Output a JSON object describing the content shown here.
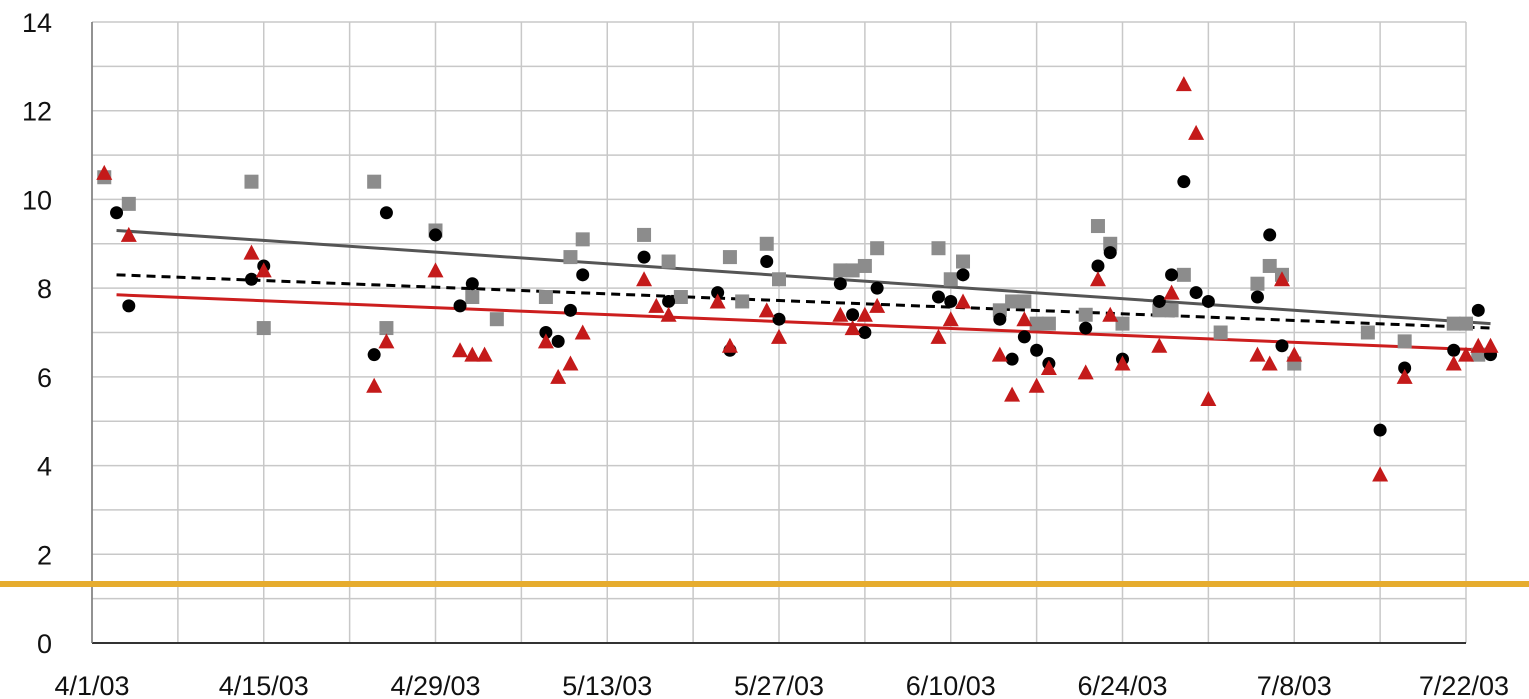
{
  "chart_data": {
    "type": "scatter",
    "title": "",
    "xlabel": "",
    "ylabel": "",
    "x_ticks": [
      "4/1/03",
      "4/15/03",
      "4/29/03",
      "5/13/03",
      "5/27/03",
      "6/10/03",
      "6/24/03",
      "7/8/03",
      "7/22/03"
    ],
    "y_ticks": [
      "0",
      "2",
      "4",
      "6",
      "8",
      "10",
      "12",
      "14"
    ],
    "xlim": [
      "2003-04-01",
      "2003-07-22"
    ],
    "ylim": [
      0,
      14
    ],
    "grid": true,
    "legend": "none",
    "series": [
      {
        "marker": "square",
        "color": "#8c8c8c",
        "points": [
          [
            "2003-04-02",
            10.5
          ],
          [
            "2003-04-04",
            9.9
          ],
          [
            "2003-04-14",
            10.4
          ],
          [
            "2003-04-15",
            7.1
          ],
          [
            "2003-04-24",
            10.4
          ],
          [
            "2003-04-25",
            7.1
          ],
          [
            "2003-04-29",
            9.3
          ],
          [
            "2003-05-02",
            7.8
          ],
          [
            "2003-05-04",
            7.3
          ],
          [
            "2003-05-08",
            7.8
          ],
          [
            "2003-05-10",
            8.7
          ],
          [
            "2003-05-11",
            9.1
          ],
          [
            "2003-05-16",
            9.2
          ],
          [
            "2003-05-18",
            8.6
          ],
          [
            "2003-05-19",
            7.8
          ],
          [
            "2003-05-23",
            8.7
          ],
          [
            "2003-05-24",
            7.7
          ],
          [
            "2003-05-26",
            9.0
          ],
          [
            "2003-05-27",
            8.2
          ],
          [
            "2003-06-01",
            8.4
          ],
          [
            "2003-06-02",
            8.4
          ],
          [
            "2003-06-03",
            8.5
          ],
          [
            "2003-06-04",
            8.9
          ],
          [
            "2003-06-09",
            8.9
          ],
          [
            "2003-06-10",
            8.2
          ],
          [
            "2003-06-11",
            8.6
          ],
          [
            "2003-06-14",
            7.5
          ],
          [
            "2003-06-15",
            7.7
          ],
          [
            "2003-06-16",
            7.7
          ],
          [
            "2003-06-17",
            7.2
          ],
          [
            "2003-06-18",
            7.2
          ],
          [
            "2003-06-21",
            7.4
          ],
          [
            "2003-06-22",
            9.4
          ],
          [
            "2003-06-23",
            9.0
          ],
          [
            "2003-06-24",
            7.2
          ],
          [
            "2003-06-27",
            7.5
          ],
          [
            "2003-06-28",
            7.5
          ],
          [
            "2003-06-29",
            8.3
          ],
          [
            "2003-07-02",
            7.0
          ],
          [
            "2003-07-05",
            8.1
          ],
          [
            "2003-07-06",
            8.5
          ],
          [
            "2003-07-07",
            8.3
          ],
          [
            "2003-07-08",
            6.3
          ],
          [
            "2003-07-14",
            7.0
          ],
          [
            "2003-07-17",
            6.8
          ],
          [
            "2003-07-21",
            7.2
          ],
          [
            "2003-07-22",
            7.2
          ],
          [
            "2003-07-23",
            6.5
          ]
        ]
      },
      {
        "marker": "circle",
        "color": "#000000",
        "points": [
          [
            "2003-04-03",
            9.7
          ],
          [
            "2003-04-04",
            7.6
          ],
          [
            "2003-04-14",
            8.2
          ],
          [
            "2003-04-15",
            8.5
          ],
          [
            "2003-04-24",
            6.5
          ],
          [
            "2003-04-25",
            9.7
          ],
          [
            "2003-04-29",
            9.2
          ],
          [
            "2003-05-01",
            7.6
          ],
          [
            "2003-05-02",
            8.1
          ],
          [
            "2003-05-08",
            7.0
          ],
          [
            "2003-05-09",
            6.8
          ],
          [
            "2003-05-10",
            7.5
          ],
          [
            "2003-05-11",
            8.3
          ],
          [
            "2003-05-16",
            8.7
          ],
          [
            "2003-05-18",
            7.7
          ],
          [
            "2003-05-22",
            7.9
          ],
          [
            "2003-05-23",
            6.6
          ],
          [
            "2003-05-26",
            8.6
          ],
          [
            "2003-05-27",
            7.3
          ],
          [
            "2003-06-01",
            8.1
          ],
          [
            "2003-06-02",
            7.4
          ],
          [
            "2003-06-03",
            7.0
          ],
          [
            "2003-06-04",
            8.0
          ],
          [
            "2003-06-09",
            7.8
          ],
          [
            "2003-06-10",
            7.7
          ],
          [
            "2003-06-11",
            8.3
          ],
          [
            "2003-06-14",
            7.3
          ],
          [
            "2003-06-15",
            6.4
          ],
          [
            "2003-06-16",
            6.9
          ],
          [
            "2003-06-17",
            6.6
          ],
          [
            "2003-06-18",
            6.3
          ],
          [
            "2003-06-21",
            7.1
          ],
          [
            "2003-06-22",
            8.5
          ],
          [
            "2003-06-23",
            8.8
          ],
          [
            "2003-06-24",
            6.4
          ],
          [
            "2003-06-27",
            7.7
          ],
          [
            "2003-06-28",
            8.3
          ],
          [
            "2003-06-29",
            10.4
          ],
          [
            "2003-06-30",
            7.9
          ],
          [
            "2003-07-01",
            7.7
          ],
          [
            "2003-07-05",
            7.8
          ],
          [
            "2003-07-06",
            9.2
          ],
          [
            "2003-07-07",
            6.7
          ],
          [
            "2003-07-15",
            4.8
          ],
          [
            "2003-07-17",
            6.2
          ],
          [
            "2003-07-21",
            6.6
          ],
          [
            "2003-07-23",
            7.5
          ],
          [
            "2003-07-24",
            6.5
          ]
        ]
      },
      {
        "marker": "triangle",
        "color": "#c41a1a",
        "points": [
          [
            "2003-04-02",
            10.6
          ],
          [
            "2003-04-04",
            9.2
          ],
          [
            "2003-04-14",
            8.8
          ],
          [
            "2003-04-15",
            8.4
          ],
          [
            "2003-04-24",
            5.8
          ],
          [
            "2003-04-25",
            6.8
          ],
          [
            "2003-04-29",
            8.4
          ],
          [
            "2003-05-01",
            6.6
          ],
          [
            "2003-05-02",
            6.5
          ],
          [
            "2003-05-03",
            6.5
          ],
          [
            "2003-05-08",
            6.8
          ],
          [
            "2003-05-09",
            6.0
          ],
          [
            "2003-05-10",
            6.3
          ],
          [
            "2003-05-11",
            7.0
          ],
          [
            "2003-05-16",
            8.2
          ],
          [
            "2003-05-17",
            7.6
          ],
          [
            "2003-05-18",
            7.4
          ],
          [
            "2003-05-22",
            7.7
          ],
          [
            "2003-05-23",
            6.7
          ],
          [
            "2003-05-26",
            7.5
          ],
          [
            "2003-05-27",
            6.9
          ],
          [
            "2003-06-01",
            7.4
          ],
          [
            "2003-06-02",
            7.1
          ],
          [
            "2003-06-03",
            7.4
          ],
          [
            "2003-06-04",
            7.6
          ],
          [
            "2003-06-09",
            6.9
          ],
          [
            "2003-06-10",
            7.3
          ],
          [
            "2003-06-11",
            7.7
          ],
          [
            "2003-06-14",
            6.5
          ],
          [
            "2003-06-15",
            5.6
          ],
          [
            "2003-06-16",
            7.3
          ],
          [
            "2003-06-17",
            5.8
          ],
          [
            "2003-06-18",
            6.2
          ],
          [
            "2003-06-21",
            6.1
          ],
          [
            "2003-06-22",
            8.2
          ],
          [
            "2003-06-23",
            7.4
          ],
          [
            "2003-06-24",
            6.3
          ],
          [
            "2003-06-27",
            6.7
          ],
          [
            "2003-06-28",
            7.9
          ],
          [
            "2003-06-29",
            12.6
          ],
          [
            "2003-06-30",
            11.5
          ],
          [
            "2003-07-01",
            5.5
          ],
          [
            "2003-07-05",
            6.5
          ],
          [
            "2003-07-06",
            6.3
          ],
          [
            "2003-07-07",
            8.2
          ],
          [
            "2003-07-08",
            6.5
          ],
          [
            "2003-07-15",
            3.8
          ],
          [
            "2003-07-17",
            6.0
          ],
          [
            "2003-07-21",
            6.3
          ],
          [
            "2003-07-22",
            6.5
          ],
          [
            "2003-07-23",
            6.7
          ],
          [
            "2003-07-24",
            6.7
          ]
        ]
      }
    ],
    "trendlines": [
      {
        "style": "solid",
        "color": "#555555",
        "from": [
          "2003-04-03",
          9.3
        ],
        "to": [
          "2003-07-24",
          7.2
        ]
      },
      {
        "style": "dashed",
        "color": "#000000",
        "from": [
          "2003-04-03",
          8.3
        ],
        "to": [
          "2003-07-24",
          7.1
        ]
      },
      {
        "style": "solid",
        "color": "#cc1e1e",
        "from": [
          "2003-04-03",
          7.85
        ],
        "to": [
          "2003-07-24",
          6.6
        ]
      }
    ],
    "overlay_bar_color": "#e6ac2e"
  }
}
